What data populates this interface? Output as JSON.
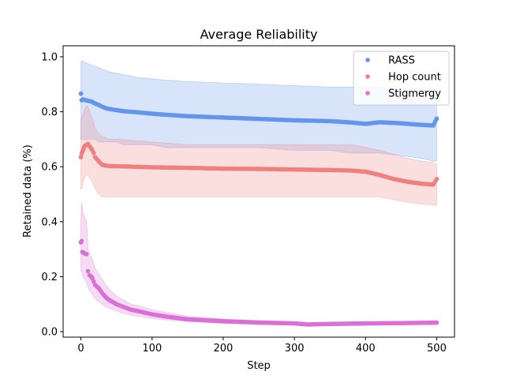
{
  "chart_data": {
    "type": "scatter",
    "title": "Average Reliability",
    "xlabel": "Step",
    "ylabel": "Retained data (%)",
    "xlim": [
      -25,
      525
    ],
    "ylim": [
      -0.02,
      1.04
    ],
    "xticks": [
      0,
      100,
      200,
      300,
      400,
      500
    ],
    "xtick_labels": [
      "0",
      "100",
      "200",
      "300",
      "400",
      "500"
    ],
    "yticks": [
      0.0,
      0.2,
      0.4,
      0.6,
      0.8,
      1.0
    ],
    "ytick_labels": [
      "0.0",
      "0.2",
      "0.4",
      "0.6",
      "0.8",
      "1.0"
    ],
    "grid": false,
    "legend_position": "top-right",
    "series": [
      {
        "name": "RASS",
        "color": "#6495ED",
        "band_color": "#6495ED",
        "x": [
          0,
          1,
          3,
          5,
          10,
          15,
          20,
          25,
          30,
          35,
          40,
          50,
          60,
          70,
          80,
          100,
          120,
          150,
          200,
          250,
          300,
          350,
          380,
          400,
          420,
          450,
          480,
          495,
          500
        ],
        "y": [
          0.866,
          0.842,
          0.845,
          0.843,
          0.84,
          0.837,
          0.83,
          0.825,
          0.818,
          0.813,
          0.81,
          0.806,
          0.802,
          0.8,
          0.798,
          0.793,
          0.789,
          0.784,
          0.779,
          0.774,
          0.769,
          0.766,
          0.761,
          0.756,
          0.762,
          0.758,
          0.752,
          0.75,
          0.775
        ],
        "lower": [
          0.7,
          0.7,
          0.7,
          0.7,
          0.7,
          0.7,
          0.7,
          0.69,
          0.69,
          0.69,
          0.69,
          0.69,
          0.68,
          0.68,
          0.68,
          0.68,
          0.67,
          0.67,
          0.67,
          0.67,
          0.66,
          0.66,
          0.65,
          0.65,
          0.65,
          0.64,
          0.63,
          0.62,
          0.62
        ],
        "upper": [
          0.98,
          0.985,
          0.985,
          0.98,
          0.975,
          0.97,
          0.965,
          0.96,
          0.955,
          0.95,
          0.945,
          0.94,
          0.935,
          0.93,
          0.925,
          0.92,
          0.915,
          0.91,
          0.905,
          0.9,
          0.895,
          0.89,
          0.89,
          0.89,
          0.89,
          0.885,
          0.885,
          0.885,
          0.885
        ]
      },
      {
        "name": "Hop count",
        "color": "#F08080",
        "band_color": "#F08080",
        "x": [
          0,
          1,
          3,
          5,
          8,
          10,
          12,
          15,
          18,
          20,
          25,
          30,
          40,
          50,
          100,
          150,
          200,
          250,
          300,
          350,
          380,
          400,
          420,
          440,
          460,
          480,
          495,
          500
        ],
        "y": [
          0.635,
          0.648,
          0.66,
          0.675,
          0.68,
          0.683,
          0.675,
          0.665,
          0.65,
          0.635,
          0.62,
          0.607,
          0.602,
          0.602,
          0.598,
          0.596,
          0.593,
          0.592,
          0.59,
          0.588,
          0.586,
          0.582,
          0.57,
          0.555,
          0.545,
          0.538,
          0.535,
          0.555
        ],
        "lower": [
          0.52,
          0.52,
          0.54,
          0.56,
          0.57,
          0.57,
          0.56,
          0.55,
          0.53,
          0.52,
          0.5,
          0.49,
          0.49,
          0.49,
          0.49,
          0.49,
          0.49,
          0.49,
          0.49,
          0.49,
          0.49,
          0.49,
          0.49,
          0.48,
          0.47,
          0.465,
          0.46,
          0.46
        ],
        "upper": [
          0.76,
          0.78,
          0.79,
          0.81,
          0.82,
          0.82,
          0.8,
          0.78,
          0.76,
          0.74,
          0.72,
          0.71,
          0.7,
          0.7,
          0.69,
          0.68,
          0.68,
          0.68,
          0.68,
          0.68,
          0.68,
          0.67,
          0.66,
          0.645,
          0.63,
          0.62,
          0.615,
          0.61
        ]
      },
      {
        "name": "Stigmergy",
        "color": "#DA70D6",
        "band_color": "#DA70D6",
        "x": [
          0,
          1,
          2,
          3,
          5,
          8,
          10,
          12,
          15,
          20,
          25,
          30,
          35,
          40,
          50,
          60,
          70,
          80,
          100,
          120,
          150,
          200,
          250,
          300,
          320,
          330,
          350,
          400,
          450,
          500
        ],
        "y": [
          0.325,
          0.33,
          0.29,
          0.288,
          0.285,
          0.282,
          0.22,
          0.205,
          0.2,
          0.17,
          0.158,
          0.14,
          0.125,
          0.115,
          0.1,
          0.09,
          0.08,
          0.075,
          0.063,
          0.055,
          0.045,
          0.038,
          0.033,
          0.03,
          0.026,
          0.027,
          0.028,
          0.03,
          0.031,
          0.033
        ],
        "lower": [
          0.22,
          0.22,
          0.21,
          0.2,
          0.19,
          0.18,
          0.16,
          0.15,
          0.14,
          0.12,
          0.11,
          0.1,
          0.09,
          0.085,
          0.075,
          0.067,
          0.06,
          0.056,
          0.048,
          0.043,
          0.037,
          0.03,
          0.027,
          0.024,
          0.021,
          0.022,
          0.023,
          0.025,
          0.026,
          0.028
        ],
        "upper": [
          0.4,
          0.47,
          0.45,
          0.43,
          0.42,
          0.4,
          0.3,
          0.28,
          0.27,
          0.23,
          0.21,
          0.19,
          0.17,
          0.155,
          0.13,
          0.115,
          0.1,
          0.095,
          0.08,
          0.07,
          0.056,
          0.046,
          0.04,
          0.036,
          0.032,
          0.032,
          0.034,
          0.036,
          0.037,
          0.039
        ]
      }
    ]
  }
}
